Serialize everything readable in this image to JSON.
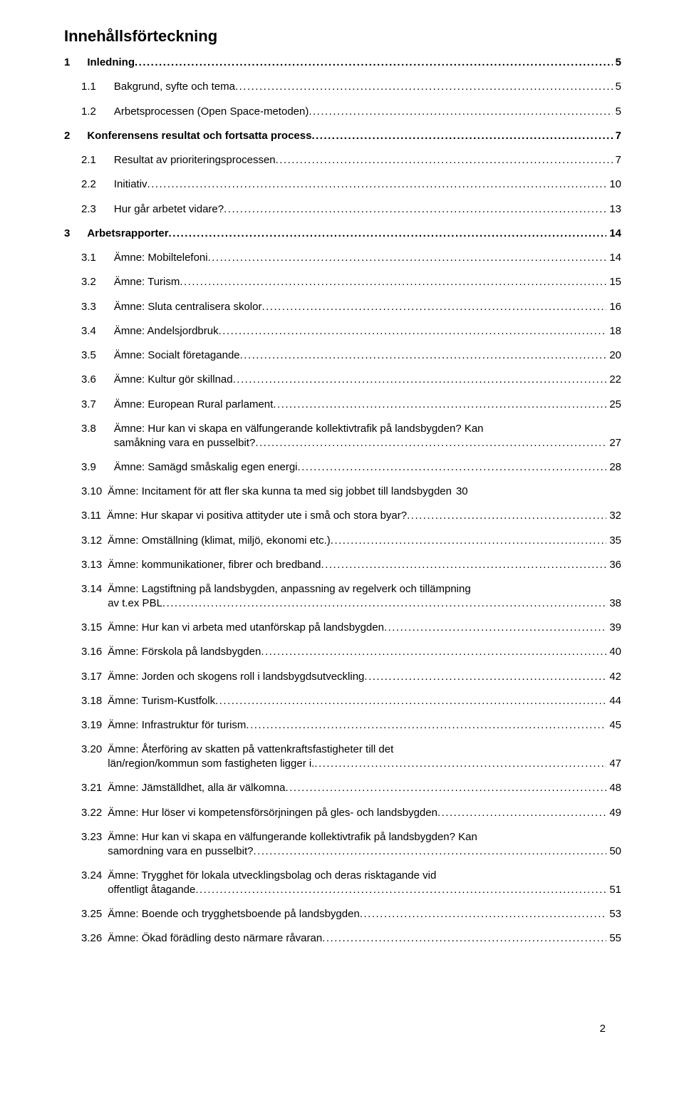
{
  "page": {
    "title": "Innehållsförteckning",
    "footer_page_number": "2",
    "background_color": "#ffffff",
    "text_color": "#000000",
    "title_fontsize": 22,
    "body_fontsize": 15,
    "leader_char": "."
  },
  "toc": [
    {
      "level": 1,
      "number": "1",
      "label": "Inledning",
      "page": "5"
    },
    {
      "level": 2,
      "number": "1.1",
      "label": "Bakgrund, syfte och tema",
      "page": "5"
    },
    {
      "level": 2,
      "number": "1.2",
      "label": "Arbetsprocessen (Open Space-metoden)",
      "page": "5"
    },
    {
      "level": 1,
      "number": "2",
      "label": "Konferensens resultat och fortsatta process",
      "page": "7"
    },
    {
      "level": 2,
      "number": "2.1",
      "label": "Resultat av prioriteringsprocessen",
      "page": "7"
    },
    {
      "level": 2,
      "number": "2.2",
      "label": "Initiativ",
      "page": "10"
    },
    {
      "level": 2,
      "number": "2.3",
      "label": "Hur går arbetet vidare?",
      "page": "13"
    },
    {
      "level": 1,
      "number": "3",
      "label": "Arbetsrapporter",
      "page": "14"
    },
    {
      "level": 2,
      "number": "3.1",
      "label": "Ämne: Mobiltelefoni",
      "page": "14"
    },
    {
      "level": 2,
      "number": "3.2",
      "label": "Ämne: Turism",
      "page": "15"
    },
    {
      "level": 2,
      "number": "3.3",
      "label": "Ämne: Sluta centralisera skolor",
      "page": "16"
    },
    {
      "level": 2,
      "number": "3.4",
      "label": "Ämne: Andelsjordbruk",
      "page": "18"
    },
    {
      "level": 2,
      "number": "3.5",
      "label": "Ämne: Socialt företagande",
      "page": "20"
    },
    {
      "level": 2,
      "number": "3.6",
      "label": "Ämne: Kultur gör skillnad",
      "page": "22"
    },
    {
      "level": 2,
      "number": "3.7",
      "label": "Ämne: European Rural parlament",
      "page": "25"
    },
    {
      "level": 2,
      "number": "3.8",
      "label_lines": [
        "Ämne: Hur kan vi skapa en välfungerande kollektivtrafik på landsbygden? Kan",
        "samåkning vara en pusselbit?"
      ],
      "page": "27"
    },
    {
      "level": 2,
      "number": "3.9",
      "label": "Ämne: Samägd småskalig egen energi",
      "page": "28"
    },
    {
      "level": 2,
      "number": "3.10",
      "label": "Ämne: Incitament för att fler ska kunna ta med sig jobbet till landsbygden",
      "page": "30",
      "no_leader": true
    },
    {
      "level": 2,
      "number": "3.11",
      "label": "Ämne: Hur skapar vi positiva attityder ute i små och stora byar?",
      "page": "32"
    },
    {
      "level": 2,
      "number": "3.12",
      "label": "Ämne: Omställning (klimat, miljö, ekonomi etc.)",
      "page": "35"
    },
    {
      "level": 2,
      "number": "3.13",
      "label": "Ämne: kommunikationer, fibrer och bredband",
      "page": "36"
    },
    {
      "level": 2,
      "number": "3.14",
      "label_lines": [
        "Ämne: Lagstiftning på landsbygden, anpassning av regelverk och tillämpning",
        "av t.ex PBL"
      ],
      "page": "38"
    },
    {
      "level": 2,
      "number": "3.15",
      "label": "Ämne: Hur kan vi arbeta med utanförskap på landsbygden",
      "page": "39"
    },
    {
      "level": 2,
      "number": "3.16",
      "label": "Ämne: Förskola på landsbygden",
      "page": "40"
    },
    {
      "level": 2,
      "number": "3.17",
      "label": "Ämne: Jorden och skogens roll i landsbygdsutveckling",
      "page": "42"
    },
    {
      "level": 2,
      "number": "3.18",
      "label": "Ämne: Turism-Kustfolk",
      "page": "44"
    },
    {
      "level": 2,
      "number": "3.19",
      "label": "Ämne: Infrastruktur för turism",
      "page": "45"
    },
    {
      "level": 2,
      "number": "3.20",
      "label_lines": [
        "Ämne: Återföring av skatten på vattenkraftsfastigheter till det",
        "län/region/kommun som fastigheten ligger i."
      ],
      "page": "47"
    },
    {
      "level": 2,
      "number": "3.21",
      "label": "Ämne: Jämställdhet, alla är välkomna",
      "page": "48"
    },
    {
      "level": 2,
      "number": "3.22",
      "label": "Ämne: Hur löser vi kompetensförsörjningen på gles- och landsbygden",
      "page": "49"
    },
    {
      "level": 2,
      "number": "3.23",
      "label_lines": [
        "Ämne: Hur kan vi skapa en välfungerande kollektivtrafik på landsbygden? Kan",
        "samordning vara en pusselbit?"
      ],
      "page": "50"
    },
    {
      "level": 2,
      "number": "3.24",
      "label_lines": [
        "Ämne: Trygghet för lokala utvecklingsbolag och deras risktagande vid",
        "offentligt åtagande"
      ],
      "page": "51"
    },
    {
      "level": 2,
      "number": "3.25",
      "label": "Ämne: Boende och trygghetsboende på landsbygden",
      "page": "53"
    },
    {
      "level": 2,
      "number": "3.26",
      "label": "Ämne: Ökad förädling desto närmare råvaran",
      "page": "55"
    }
  ]
}
